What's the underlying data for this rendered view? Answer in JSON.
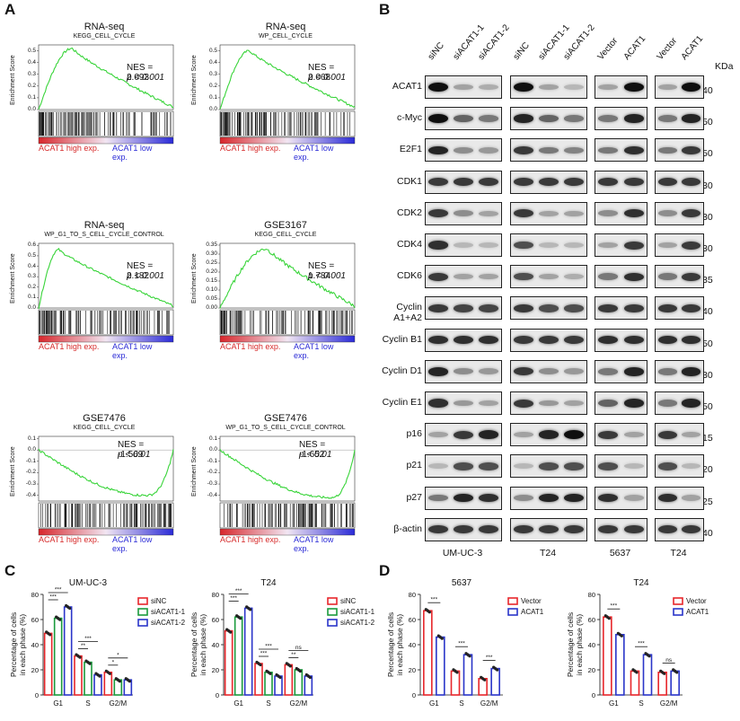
{
  "panel_letters": {
    "a": "A",
    "b": "B",
    "c": "C",
    "d": "D"
  },
  "gsea_common": {
    "ylabel": "Enrichment Score",
    "low_label": "ACAT1 high exp.",
    "high_label": "ACAT1 low exp."
  },
  "gsea": [
    {
      "title": "RNA-seq",
      "subtitle": "KEGG_CELL_CYCLE",
      "nes": "NES = 2.093",
      "p": "p < 0.001",
      "yticks": [
        "0.5",
        "0.4",
        "0.3",
        "0.2",
        "0.1",
        "0.0"
      ],
      "ymin": 0,
      "ymax": 0.55,
      "peak": 0.52,
      "peakPos": 0.25,
      "end": 0.02
    },
    {
      "title": "RNA-seq",
      "subtitle": "WP_CELL_CYCLE",
      "nes": "NES = 2.068",
      "p": "p < 0.001",
      "yticks": [
        "0.5",
        "0.4",
        "0.3",
        "0.2",
        "0.1",
        "0.0"
      ],
      "ymin": 0,
      "ymax": 0.55,
      "peak": 0.5,
      "peakPos": 0.22,
      "end": 0.02
    },
    {
      "title": "RNA-seq",
      "subtitle": "WP_G1_TO_S_CELL_CYCLE_CONTROL",
      "nes": "NES = 2.182",
      "p": "p < 0.001",
      "yticks": [
        "0.6",
        "0.5",
        "0.4",
        "0.3",
        "0.2",
        "0.1",
        "0.0"
      ],
      "ymin": 0,
      "ymax": 0.62,
      "peak": 0.56,
      "peakPos": 0.15,
      "end": 0.02
    },
    {
      "title": "GSE3167",
      "subtitle": "KEGG_CELL_CYCLE",
      "nes": "NES = 1.784",
      "p": "p < 0.001",
      "yticks": [
        "0.35",
        "0.30",
        "0.25",
        "0.20",
        "0.15",
        "0.10",
        "0.05",
        "0.00"
      ],
      "ymin": 0,
      "ymax": 0.36,
      "peak": 0.33,
      "peakPos": 0.35,
      "end": 0.01
    },
    {
      "title": "GSE7476",
      "subtitle": "KEGG_CELL_CYCLE",
      "nes": "NES = -1.569",
      "p": "p < 0.01",
      "yticks": [
        "0.1",
        "0.0",
        "-0.1",
        "-0.2",
        "-0.3",
        "-0.4"
      ],
      "ymin": -0.45,
      "ymax": 0.12,
      "peak": -0.4,
      "peakPos": 0.8,
      "end": 0.0,
      "neg": true
    },
    {
      "title": "GSE7476",
      "subtitle": "WP_G1_TO_S_CELL_CYCLE_CONTROL",
      "nes": "NES = -1.652",
      "p": "p < 0.01",
      "yticks": [
        "0.1",
        "0.0",
        "-0.1",
        "-0.2",
        "-0.3",
        "-0.4"
      ],
      "ymin": -0.45,
      "ymax": 0.12,
      "peak": -0.42,
      "peakPos": 0.82,
      "end": 0.0,
      "neg": true
    }
  ],
  "western": {
    "kda_unit": "KDa",
    "lane_labels": [
      "siNC",
      "siACAT1-1",
      "siACAT1-2",
      "siNC",
      "siACAT1-1",
      "siACAT1-2",
      "Vector",
      "ACAT1",
      "Vector",
      "ACAT1"
    ],
    "cell_lines": [
      "UM-UC-3",
      "T24",
      "5637",
      "T24"
    ],
    "rows": [
      {
        "name": "ACAT1",
        "kda": "40",
        "pattern": [
          1.0,
          0.3,
          0.25,
          1.0,
          0.3,
          0.2,
          0.3,
          1.0,
          0.3,
          1.0
        ]
      },
      {
        "name": "c-Myc",
        "kda": "50",
        "pattern": [
          1.0,
          0.6,
          0.5,
          0.9,
          0.6,
          0.5,
          0.5,
          0.9,
          0.5,
          0.9
        ]
      },
      {
        "name": "E2F1",
        "kda": "50",
        "pattern": [
          0.9,
          0.4,
          0.35,
          0.8,
          0.5,
          0.45,
          0.5,
          0.85,
          0.5,
          0.8
        ]
      },
      {
        "name": "CDK1",
        "kda": "30",
        "pattern": [
          0.8,
          0.8,
          0.8,
          0.8,
          0.8,
          0.8,
          0.8,
          0.8,
          0.8,
          0.8
        ]
      },
      {
        "name": "CDK2",
        "kda": "30",
        "pattern": [
          0.8,
          0.4,
          0.3,
          0.8,
          0.3,
          0.3,
          0.4,
          0.85,
          0.4,
          0.8
        ]
      },
      {
        "name": "CDK4",
        "kda": "30",
        "pattern": [
          0.85,
          0.2,
          0.2,
          0.7,
          0.2,
          0.2,
          0.3,
          0.8,
          0.3,
          0.8
        ]
      },
      {
        "name": "CDK6",
        "kda": "35",
        "pattern": [
          0.8,
          0.3,
          0.3,
          0.7,
          0.3,
          0.25,
          0.5,
          0.85,
          0.5,
          0.8
        ]
      },
      {
        "name": "Cyclin A1+A2",
        "kda": "40",
        "pattern": [
          0.8,
          0.75,
          0.75,
          0.8,
          0.7,
          0.7,
          0.8,
          0.8,
          0.8,
          0.8
        ]
      },
      {
        "name": "Cyclin B1",
        "kda": "50",
        "pattern": [
          0.85,
          0.85,
          0.85,
          0.8,
          0.8,
          0.8,
          0.85,
          0.85,
          0.85,
          0.85
        ]
      },
      {
        "name": "Cyclin D1",
        "kda": "30",
        "pattern": [
          0.9,
          0.4,
          0.35,
          0.8,
          0.4,
          0.35,
          0.5,
          0.9,
          0.5,
          0.9
        ]
      },
      {
        "name": "Cyclin E1",
        "kda": "50",
        "pattern": [
          0.85,
          0.35,
          0.3,
          0.8,
          0.35,
          0.3,
          0.6,
          0.9,
          0.5,
          0.9
        ]
      },
      {
        "name": "p16",
        "kda": "15",
        "pattern": [
          0.3,
          0.8,
          0.9,
          0.3,
          0.9,
          1.0,
          0.8,
          0.3,
          0.8,
          0.3
        ]
      },
      {
        "name": "p21",
        "kda": "20",
        "pattern": [
          0.2,
          0.7,
          0.7,
          0.2,
          0.7,
          0.7,
          0.7,
          0.2,
          0.7,
          0.2
        ]
      },
      {
        "name": "p27",
        "kda": "25",
        "pattern": [
          0.5,
          0.9,
          0.85,
          0.4,
          0.9,
          0.9,
          0.85,
          0.3,
          0.85,
          0.3
        ]
      },
      {
        "name": "β-actin",
        "kda": "40",
        "pattern": [
          0.8,
          0.8,
          0.8,
          0.8,
          0.8,
          0.8,
          0.8,
          0.8,
          0.8,
          0.8
        ]
      }
    ]
  },
  "chart_data": [
    {
      "type": "bar",
      "title": "UM-UC-3",
      "ylabel": "Percentage of cells in each phase (%)",
      "ylim": [
        0,
        80
      ],
      "yticks": [
        "0",
        "20",
        "40",
        "60",
        "80"
      ],
      "categories": [
        "G1",
        "S",
        "G2/M"
      ],
      "series": [
        {
          "name": "siNC",
          "values": [
            49,
            31,
            18
          ],
          "color": "#e8262b"
        },
        {
          "name": "siACAT1-1",
          "values": [
            61,
            26,
            12
          ],
          "color": "#1a9a3c"
        },
        {
          "name": "siACAT1-2",
          "values": [
            70,
            16,
            12
          ],
          "color": "#2a35c9"
        }
      ],
      "significance": [
        "***",
        "***",
        "**",
        "***",
        "*",
        "*"
      ]
    },
    {
      "type": "bar",
      "title": "T24",
      "ylabel": "Percentage of cells in each phase (%)",
      "ylim": [
        0,
        80
      ],
      "yticks": [
        "0",
        "20",
        "40",
        "60",
        "80"
      ],
      "categories": [
        "G1",
        "S",
        "G2/M"
      ],
      "series": [
        {
          "name": "siNC",
          "values": [
            51,
            25,
            24
          ],
          "color": "#e8262b"
        },
        {
          "name": "siACAT1-1",
          "values": [
            62,
            18,
            20
          ],
          "color": "#1a9a3c"
        },
        {
          "name": "siACAT1-2",
          "values": [
            69,
            15,
            15
          ],
          "color": "#2a35c9"
        }
      ],
      "significance": [
        "***",
        "***",
        "***",
        "***",
        "**",
        "ns"
      ]
    },
    {
      "type": "bar",
      "title": "5637",
      "ylabel": "Percentage of cells in each phase (%)",
      "ylim": [
        0,
        80
      ],
      "yticks": [
        "0",
        "20",
        "40",
        "60",
        "80"
      ],
      "categories": [
        "G1",
        "S",
        "G2/M"
      ],
      "series": [
        {
          "name": "Vector",
          "values": [
            67,
            19,
            13
          ],
          "color": "#e8262b"
        },
        {
          "name": "ACAT1",
          "values": [
            46,
            32,
            21
          ],
          "color": "#2a35c9"
        }
      ],
      "significance": [
        "***",
        "***",
        "***"
      ]
    },
    {
      "type": "bar",
      "title": "T24",
      "ylabel": "Percentage of cells in each phase (%)",
      "ylim": [
        0,
        80
      ],
      "yticks": [
        "0",
        "20",
        "40",
        "60",
        "80"
      ],
      "categories": [
        "G1",
        "S",
        "G2/M"
      ],
      "series": [
        {
          "name": "Vector",
          "values": [
            62,
            19,
            18
          ],
          "color": "#e8262b"
        },
        {
          "name": "ACAT1",
          "values": [
            48,
            32,
            19
          ],
          "color": "#2a35c9"
        }
      ],
      "significance": [
        "***",
        "***",
        "ns"
      ]
    }
  ]
}
